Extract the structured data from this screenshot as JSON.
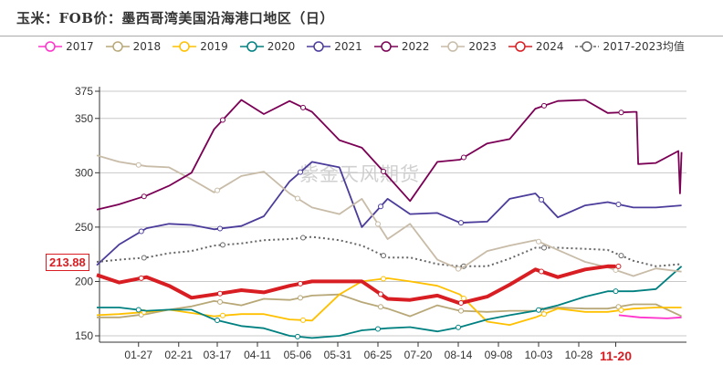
{
  "title": "玉米：FOB价：墨西哥湾美国沿海港口地区（日）",
  "watermark": "紫金天风期货",
  "chart_data": {
    "type": "line",
    "title": "玉米：FOB价：墨西哥湾美国沿海港口地区（日）",
    "xlabel": "",
    "ylabel": "",
    "ylim": [
      150,
      375
    ],
    "yticks": [
      150,
      200,
      250,
      300,
      350,
      375
    ],
    "xticks": [
      "01-27",
      "02-21",
      "03-17",
      "04-11",
      "05-06",
      "05-31",
      "06-25",
      "07-20",
      "08-14",
      "09-08",
      "10-03",
      "10-28"
    ],
    "highlight_xtick": "11-20",
    "highlight_color": "#d81e23",
    "last_value_label": "213.88",
    "grid": "horizontal",
    "legend_position": "top",
    "series": [
      {
        "name": "2017",
        "color": "#ff33cc",
        "style": "solid",
        "data": [
          [
            "11-22",
            169
          ],
          [
            "12-05",
            167
          ],
          [
            "12-22",
            166
          ],
          [
            "12-31",
            167
          ]
        ]
      },
      {
        "name": "2018",
        "color": "#b8a878",
        "style": "solid",
        "data": [
          [
            "01-01",
            167
          ],
          [
            "01-15",
            167
          ],
          [
            "02-01",
            170
          ],
          [
            "02-15",
            174
          ],
          [
            "03-01",
            177
          ],
          [
            "03-15",
            182
          ],
          [
            "04-01",
            178
          ],
          [
            "04-15",
            184
          ],
          [
            "05-01",
            183
          ],
          [
            "05-15",
            187
          ],
          [
            "06-01",
            188
          ],
          [
            "06-15",
            181
          ],
          [
            "07-01",
            175
          ],
          [
            "07-15",
            168
          ],
          [
            "08-01",
            178
          ],
          [
            "08-15",
            173
          ],
          [
            "09-01",
            172
          ],
          [
            "09-15",
            173
          ],
          [
            "10-01",
            173
          ],
          [
            "10-15",
            176
          ],
          [
            "11-01",
            175
          ],
          [
            "11-15",
            175
          ],
          [
            "12-01",
            179
          ],
          [
            "12-15",
            179
          ],
          [
            "12-31",
            168
          ]
        ]
      },
      {
        "name": "2019",
        "color": "#ffc000",
        "style": "solid",
        "data": [
          [
            "01-01",
            169
          ],
          [
            "01-15",
            170
          ],
          [
            "02-01",
            172
          ],
          [
            "02-15",
            174
          ],
          [
            "03-01",
            171
          ],
          [
            "03-15",
            168
          ],
          [
            "04-01",
            170
          ],
          [
            "04-15",
            170
          ],
          [
            "05-01",
            165
          ],
          [
            "05-15",
            164
          ],
          [
            "06-01",
            188
          ],
          [
            "06-15",
            200
          ],
          [
            "07-01",
            203
          ],
          [
            "07-15",
            200
          ],
          [
            "08-01",
            196
          ],
          [
            "08-15",
            188
          ],
          [
            "09-01",
            163
          ],
          [
            "09-15",
            160
          ],
          [
            "10-01",
            167
          ],
          [
            "10-15",
            175
          ],
          [
            "11-01",
            172
          ],
          [
            "11-15",
            172
          ],
          [
            "12-01",
            175
          ],
          [
            "12-15",
            176
          ],
          [
            "12-31",
            176
          ]
        ]
      },
      {
        "name": "2020",
        "color": "#008080",
        "style": "solid",
        "data": [
          [
            "01-01",
            176
          ],
          [
            "01-15",
            176
          ],
          [
            "02-01",
            173
          ],
          [
            "02-15",
            174
          ],
          [
            "03-01",
            174
          ],
          [
            "03-15",
            165
          ],
          [
            "04-01",
            159
          ],
          [
            "04-15",
            157
          ],
          [
            "05-01",
            150
          ],
          [
            "05-15",
            148
          ],
          [
            "06-01",
            150
          ],
          [
            "06-15",
            155
          ],
          [
            "07-01",
            157
          ],
          [
            "07-15",
            158
          ],
          [
            "08-01",
            154
          ],
          [
            "08-15",
            158
          ],
          [
            "09-01",
            165
          ],
          [
            "09-15",
            169
          ],
          [
            "10-01",
            173
          ],
          [
            "10-15",
            178
          ],
          [
            "11-01",
            186
          ],
          [
            "11-15",
            191
          ],
          [
            "12-01",
            191
          ],
          [
            "12-15",
            193
          ],
          [
            "12-31",
            214
          ]
        ]
      },
      {
        "name": "2021",
        "color": "#4b3c9b",
        "style": "solid",
        "data": [
          [
            "01-01",
            215
          ],
          [
            "01-15",
            234
          ],
          [
            "02-01",
            249
          ],
          [
            "02-15",
            253
          ],
          [
            "03-01",
            252
          ],
          [
            "03-15",
            248
          ],
          [
            "04-01",
            251
          ],
          [
            "04-15",
            260
          ],
          [
            "05-01",
            292
          ],
          [
            "05-15",
            310
          ],
          [
            "06-01",
            305
          ],
          [
            "06-15",
            250
          ],
          [
            "07-01",
            276
          ],
          [
            "07-15",
            262
          ],
          [
            "08-01",
            263
          ],
          [
            "08-15",
            254
          ],
          [
            "09-01",
            255
          ],
          [
            "09-15",
            276
          ],
          [
            "10-01",
            281
          ],
          [
            "10-15",
            259
          ],
          [
            "11-01",
            270
          ],
          [
            "11-15",
            273
          ],
          [
            "12-01",
            268
          ],
          [
            "12-15",
            268
          ],
          [
            "12-31",
            270
          ]
        ]
      },
      {
        "name": "2022",
        "color": "#7b0055",
        "style": "solid",
        "data": [
          [
            "01-01",
            266
          ],
          [
            "01-15",
            271
          ],
          [
            "02-01",
            279
          ],
          [
            "02-15",
            288
          ],
          [
            "03-01",
            300
          ],
          [
            "03-15",
            340
          ],
          [
            "04-01",
            367
          ],
          [
            "04-15",
            354
          ],
          [
            "05-01",
            366
          ],
          [
            "05-15",
            356
          ],
          [
            "06-01",
            330
          ],
          [
            "06-15",
            323
          ],
          [
            "07-01",
            297
          ],
          [
            "07-15",
            274
          ],
          [
            "08-01",
            310
          ],
          [
            "08-15",
            312
          ],
          [
            "09-01",
            327
          ],
          [
            "09-15",
            331
          ],
          [
            "10-01",
            359
          ],
          [
            "10-15",
            366
          ],
          [
            "11-01",
            367
          ],
          [
            "11-15",
            355
          ],
          [
            "12-01",
            356
          ],
          [
            "12-03",
            356
          ],
          [
            "12-04",
            308
          ],
          [
            "12-15",
            309
          ],
          [
            "12-29",
            320
          ],
          [
            "12-30",
            281
          ],
          [
            "12-31",
            319
          ]
        ]
      },
      {
        "name": "2023",
        "color": "#c8bca8",
        "style": "solid",
        "data": [
          [
            "01-01",
            316
          ],
          [
            "01-15",
            310
          ],
          [
            "02-01",
            306
          ],
          [
            "02-15",
            305
          ],
          [
            "03-01",
            294
          ],
          [
            "03-15",
            282
          ],
          [
            "04-01",
            297
          ],
          [
            "04-15",
            301
          ],
          [
            "05-01",
            281
          ],
          [
            "05-15",
            268
          ],
          [
            "06-01",
            262
          ],
          [
            "06-15",
            276
          ],
          [
            "07-01",
            239
          ],
          [
            "07-15",
            253
          ],
          [
            "08-01",
            220
          ],
          [
            "08-15",
            211
          ],
          [
            "09-01",
            228
          ],
          [
            "09-15",
            233
          ],
          [
            "10-01",
            238
          ],
          [
            "10-15",
            229
          ],
          [
            "11-01",
            218
          ],
          [
            "11-15",
            213
          ],
          [
            "12-01",
            205
          ],
          [
            "12-15",
            212
          ],
          [
            "12-31",
            209
          ]
        ]
      },
      {
        "name": "2024",
        "color": "#d81e23",
        "style": "thick",
        "data": [
          [
            "01-01",
            206
          ],
          [
            "01-15",
            199
          ],
          [
            "02-01",
            204
          ],
          [
            "02-15",
            196
          ],
          [
            "03-01",
            185
          ],
          [
            "03-15",
            188
          ],
          [
            "04-01",
            192
          ],
          [
            "04-15",
            190
          ],
          [
            "05-01",
            196
          ],
          [
            "05-15",
            200
          ],
          [
            "06-01",
            200
          ],
          [
            "06-15",
            200
          ],
          [
            "07-01",
            184
          ],
          [
            "07-15",
            183
          ],
          [
            "08-01",
            187
          ],
          [
            "08-15",
            180
          ],
          [
            "09-01",
            186
          ],
          [
            "09-15",
            197
          ],
          [
            "10-01",
            211
          ],
          [
            "10-15",
            204
          ],
          [
            "11-01",
            211
          ],
          [
            "11-15",
            214
          ],
          [
            "11-20",
            213.88
          ]
        ]
      },
      {
        "name": "2017-2023均值",
        "color": "#666666",
        "style": "dotted",
        "data": [
          [
            "01-01",
            218
          ],
          [
            "01-15",
            220
          ],
          [
            "02-01",
            222
          ],
          [
            "02-15",
            226
          ],
          [
            "03-01",
            228
          ],
          [
            "03-15",
            233
          ],
          [
            "04-01",
            235
          ],
          [
            "04-15",
            238
          ],
          [
            "05-01",
            239
          ],
          [
            "05-15",
            241
          ],
          [
            "06-01",
            238
          ],
          [
            "06-15",
            233
          ],
          [
            "07-01",
            222
          ],
          [
            "07-15",
            222
          ],
          [
            "08-01",
            216
          ],
          [
            "08-15",
            214
          ],
          [
            "09-01",
            214
          ],
          [
            "09-15",
            221
          ],
          [
            "10-01",
            231
          ],
          [
            "10-15",
            231
          ],
          [
            "11-01",
            230
          ],
          [
            "11-15",
            229
          ],
          [
            "12-01",
            219
          ],
          [
            "12-15",
            214
          ],
          [
            "12-31",
            216
          ]
        ]
      }
    ]
  }
}
